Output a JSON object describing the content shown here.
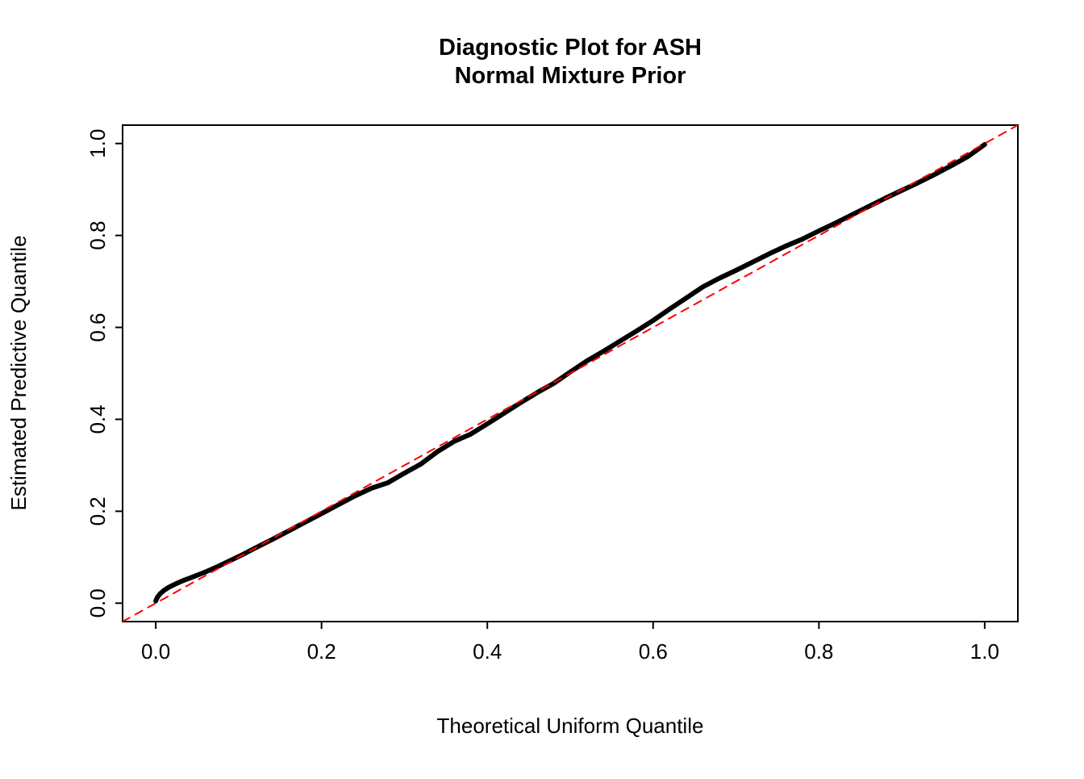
{
  "chart_data": {
    "type": "line",
    "title": "Diagnostic Plot for ASH",
    "subtitle": "Normal Mixture Prior",
    "xlabel": "Theoretical Uniform Quantile",
    "ylabel": "Estimated Predictive Quantile",
    "xlim": [
      -0.04,
      1.04
    ],
    "ylim": [
      -0.04,
      1.04
    ],
    "grid": false,
    "legend": "none",
    "x_tick_values": [
      0.0,
      0.2,
      0.4,
      0.6,
      0.8,
      1.0
    ],
    "x_tick_labels": [
      "0.0",
      "0.2",
      "0.4",
      "0.6",
      "0.8",
      "1.0"
    ],
    "y_tick_values": [
      0.0,
      0.2,
      0.4,
      0.6,
      0.8,
      1.0
    ],
    "y_tick_labels": [
      "0.0",
      "0.2",
      "0.4",
      "0.6",
      "0.8",
      "1.0"
    ],
    "series": [
      {
        "name": "estimated-quantile-curve",
        "color": "#000000",
        "style": "solid",
        "width": 6,
        "x": [
          0.0,
          0.002,
          0.005,
          0.01,
          0.016,
          0.024,
          0.034,
          0.046,
          0.06,
          0.075,
          0.09,
          0.105,
          0.12,
          0.14,
          0.16,
          0.18,
          0.2,
          0.22,
          0.24,
          0.26,
          0.28,
          0.3,
          0.32,
          0.34,
          0.36,
          0.38,
          0.4,
          0.42,
          0.44,
          0.46,
          0.48,
          0.5,
          0.52,
          0.54,
          0.56,
          0.58,
          0.6,
          0.62,
          0.64,
          0.66,
          0.68,
          0.7,
          0.72,
          0.74,
          0.76,
          0.78,
          0.8,
          0.82,
          0.84,
          0.86,
          0.88,
          0.9,
          0.92,
          0.94,
          0.96,
          0.98,
          1.0
        ],
        "y": [
          0.005,
          0.013,
          0.02,
          0.028,
          0.035,
          0.042,
          0.05,
          0.058,
          0.068,
          0.08,
          0.093,
          0.106,
          0.12,
          0.138,
          0.157,
          0.176,
          0.195,
          0.214,
          0.233,
          0.25,
          0.262,
          0.283,
          0.303,
          0.33,
          0.352,
          0.368,
          0.39,
          0.413,
          0.436,
          0.458,
          0.478,
          0.503,
          0.527,
          0.548,
          0.57,
          0.592,
          0.615,
          0.64,
          0.664,
          0.688,
          0.707,
          0.724,
          0.742,
          0.76,
          0.777,
          0.792,
          0.81,
          0.827,
          0.845,
          0.863,
          0.881,
          0.898,
          0.915,
          0.933,
          0.952,
          0.972,
          0.998
        ]
      },
      {
        "name": "identity-reference-line",
        "color": "#FF0000",
        "style": "dashed",
        "width": 2,
        "x": [
          -0.04,
          1.04
        ],
        "y": [
          -0.04,
          1.04
        ]
      }
    ]
  }
}
